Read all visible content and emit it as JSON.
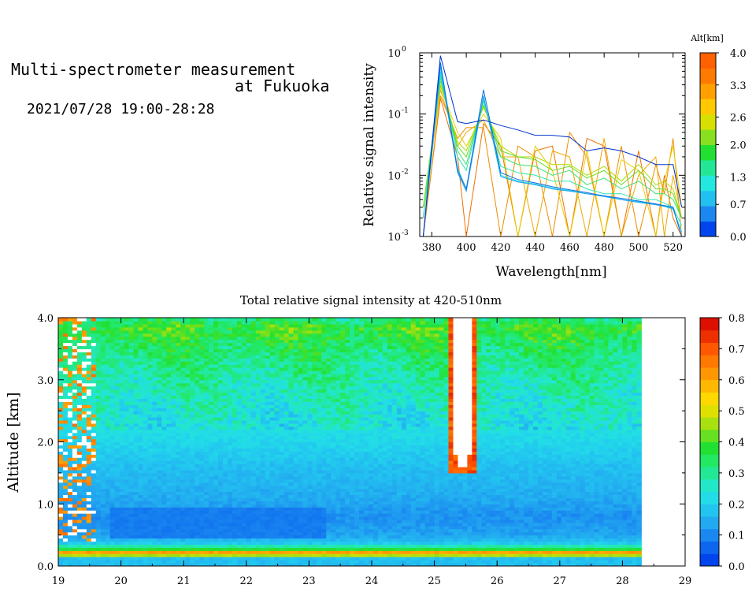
{
  "header": {
    "title_line1": "Multi-spectrometer measurement",
    "title_line2": "at Fukuoka",
    "time_range": "2021/07/28 19:00-28:28"
  },
  "chart_data": [
    {
      "type": "line",
      "xlabel": "Wavelength[nm]",
      "ylabel": "Relative signal intensity",
      "x_ticks": [
        "380",
        "400",
        "420",
        "440",
        "460",
        "480",
        "500",
        "520"
      ],
      "xlim": [
        373,
        527
      ],
      "y_scale": "log",
      "ylim": [
        0.001,
        1
      ],
      "y_ticks": [
        {
          "base": "10",
          "exp": "0",
          "value": 1
        },
        {
          "base": "10",
          "exp": "-1",
          "value": 0.1
        },
        {
          "base": "10",
          "exp": "-2",
          "value": 0.01
        },
        {
          "base": "10",
          "exp": "-3",
          "value": 0.001
        }
      ],
      "wavelengths": [
        375,
        385,
        395,
        400,
        410,
        420,
        430,
        440,
        450,
        460,
        470,
        480,
        490,
        500,
        510,
        515,
        520,
        525
      ],
      "series": [
        {
          "altitude": 0.0,
          "color": "#0033cc",
          "values": [
            0.001,
            0.9,
            0.075,
            0.07,
            0.08,
            0.065,
            0.055,
            0.045,
            0.045,
            0.042,
            0.025,
            0.028,
            0.025,
            0.02,
            0.015,
            0.015,
            0.015,
            0.003
          ]
        },
        {
          "altitude": 0.35,
          "color": "#0d6fe0",
          "values": [
            0.001,
            0.7,
            0.012,
            0.006,
            0.25,
            0.011,
            0.0085,
            0.0075,
            0.0065,
            0.0058,
            0.0052,
            0.0046,
            0.0042,
            0.0038,
            0.0034,
            0.0032,
            0.003,
            0.001
          ]
        },
        {
          "altitude": 0.7,
          "color": "#1aa3ea",
          "values": [
            0.001,
            0.6,
            0.011,
            0.0055,
            0.2,
            0.0095,
            0.0078,
            0.007,
            0.006,
            0.0055,
            0.005,
            0.0045,
            0.004,
            0.0036,
            0.0033,
            0.0031,
            0.0029,
            0.001
          ]
        },
        {
          "altitude": 1.0,
          "color": "#22d4ee",
          "values": [
            0.001,
            0.5,
            0.013,
            0.006,
            0.19,
            0.01,
            0.008,
            0.0072,
            0.0062,
            0.0056,
            0.005,
            0.0046,
            0.004,
            0.0037,
            0.0034,
            0.0031,
            0.0028,
            0.0012
          ]
        },
        {
          "altitude": 1.3,
          "color": "#2ee6b0",
          "values": [
            0.002,
            0.45,
            0.02,
            0.012,
            0.17,
            0.014,
            0.011,
            0.01,
            0.008,
            0.008,
            0.006,
            0.005,
            0.005,
            0.004,
            0.004,
            0.0035,
            0.003,
            0.0015
          ]
        },
        {
          "altitude": 1.65,
          "color": "#40e070",
          "values": [
            0.002,
            0.4,
            0.025,
            0.015,
            0.16,
            0.02,
            0.015,
            0.014,
            0.01,
            0.012,
            0.007,
            0.009,
            0.006,
            0.008,
            0.005,
            0.005,
            0.004,
            0.002
          ]
        },
        {
          "altitude": 2.0,
          "color": "#66dd22",
          "values": [
            0.003,
            0.35,
            0.03,
            0.02,
            0.14,
            0.025,
            0.02,
            0.018,
            0.012,
            0.014,
            0.009,
            0.012,
            0.007,
            0.012,
            0.006,
            0.006,
            0.005,
            0.002
          ]
        },
        {
          "altitude": 2.3,
          "color": "#aadd00",
          "values": [
            0.003,
            0.3,
            0.035,
            0.025,
            0.13,
            0.03,
            0.02,
            0.02,
            0.015,
            0.015,
            0.01,
            0.014,
            0.008,
            0.015,
            0.007,
            0.008,
            0.006,
            0.002
          ]
        },
        {
          "altitude": 2.6,
          "color": "#e8d000",
          "values": [
            0.002,
            0.28,
            0.05,
            0.03,
            0.1,
            0.04,
            0.001,
            0.03,
            0.012,
            0.001,
            0.025,
            0.001,
            0.018,
            0.012,
            0.001,
            0.008,
            0.03,
            0.003
          ]
        },
        {
          "altitude": 3.0,
          "color": "#f0a800",
          "values": [
            0.002,
            0.25,
            0.03,
            0.05,
            0.08,
            0.02,
            0.02,
            0.001,
            0.025,
            0.02,
            0.001,
            0.04,
            0.001,
            0.01,
            0.02,
            0.001,
            0.01,
            0.002
          ]
        },
        {
          "altitude": 3.3,
          "color": "#f08c00",
          "values": [
            0.001,
            0.2,
            0.04,
            0.06,
            0.06,
            0.001,
            0.03,
            0.02,
            0.001,
            0.05,
            0.02,
            0.001,
            0.03,
            0.001,
            0.015,
            0.005,
            0.04,
            0.001
          ]
        },
        {
          "altitude": 3.7,
          "color": "#ee7000",
          "values": [
            0.001,
            0.18,
            0.02,
            0.001,
            0.07,
            0.03,
            0.001,
            0.025,
            0.03,
            0.001,
            0.04,
            0.03,
            0.001,
            0.025,
            0.001,
            0.01,
            0.002,
            0.001
          ]
        }
      ],
      "colorbar": {
        "label": "Alt[km]",
        "ticks": [
          "0.0",
          "0.7",
          "1.3",
          "2.0",
          "2.6",
          "3.3",
          "4.0"
        ],
        "range": [
          0,
          4
        ],
        "colors": [
          "#0044ee",
          "#1a88f0",
          "#22c0f0",
          "#22e8e0",
          "#22e896",
          "#22e032",
          "#88e020",
          "#d8e000",
          "#ffc800",
          "#ffa000",
          "#ff7a00",
          "#ff6000"
        ]
      }
    },
    {
      "type": "heatmap",
      "title": "Total relative signal intensity at 420-510nm",
      "ylabel": "Altitude [km]",
      "x_ticks": [
        "19",
        "20",
        "21",
        "22",
        "23",
        "24",
        "25",
        "26",
        "27",
        "28",
        "29"
      ],
      "xlim": [
        19,
        29
      ],
      "data_xlim": [
        19,
        28.3
      ],
      "y_ticks": [
        "0.0",
        "1.0",
        "2.0",
        "3.0",
        "4.0"
      ],
      "ylim": [
        0,
        4
      ],
      "colorbar": {
        "ticks": [
          "0.0",
          "0.1",
          "0.2",
          "0.3",
          "0.4",
          "0.5",
          "0.6",
          "0.7",
          "0.8"
        ],
        "range": [
          0,
          0.8
        ],
        "colors": [
          "#0044ee",
          "#0c66ee",
          "#1a88f0",
          "#22aaf0",
          "#22c4f0",
          "#22dce8",
          "#22e8c8",
          "#22e896",
          "#22e862",
          "#22e032",
          "#66e020",
          "#a8e010",
          "#e0e000",
          "#ffd800",
          "#ffb800",
          "#ff9800",
          "#ff7800",
          "#ff5800",
          "#ee3000",
          "#dd1000"
        ]
      },
      "profile": [
        {
          "alt": 0.0,
          "value": 0.16
        },
        {
          "alt": 0.15,
          "value": 0.16
        },
        {
          "alt": 0.2,
          "value": 0.78
        },
        {
          "alt": 0.26,
          "value": 0.4
        },
        {
          "alt": 0.32,
          "value": 0.28
        },
        {
          "alt": 0.38,
          "value": 0.17
        },
        {
          "alt": 0.5,
          "value": 0.12
        },
        {
          "alt": 0.8,
          "value": 0.095
        },
        {
          "alt": 1.1,
          "value": 0.13
        },
        {
          "alt": 1.6,
          "value": 0.16
        },
        {
          "alt": 2.0,
          "value": 0.2
        },
        {
          "alt": 2.5,
          "value": 0.24
        },
        {
          "alt": 3.0,
          "value": 0.28
        },
        {
          "alt": 3.5,
          "value": 0.33
        },
        {
          "alt": 3.85,
          "value": 0.4
        },
        {
          "alt": 4.0,
          "value": 0.3
        }
      ],
      "low_band": {
        "x_start": 19.8,
        "x_end": 23.3,
        "alt_min": 0.45,
        "alt_max": 0.95,
        "value": 0.07
      },
      "cloud": {
        "x_center": 25.45,
        "base_alt": 1.5,
        "top_alt": 4.0,
        "half_width_hours": 0.22,
        "value": "over-range"
      },
      "edge_noise": {
        "x_start": 19.0,
        "x_end": 19.6,
        "description": "saturated"
      }
    }
  ]
}
